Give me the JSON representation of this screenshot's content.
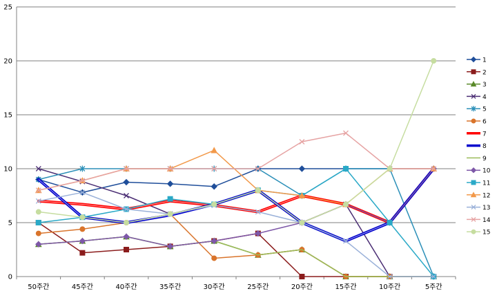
{
  "chart_data": {
    "type": "line",
    "categories": [
      "50주간",
      "45주간",
      "40주간",
      "35주간",
      "30주간",
      "25주간",
      "20주간",
      "15주간",
      "10주간",
      "5주간"
    ],
    "ylim": [
      0,
      25
    ],
    "yticks": [
      0,
      5,
      10,
      15,
      20,
      25
    ],
    "grid": true,
    "legend_position": "right",
    "series": [
      {
        "name": "1",
        "color": "#1F4E9A",
        "marker": "diamond",
        "width": 1.5,
        "values": [
          9,
          7.8,
          8.75,
          8.6,
          8.35,
          10,
          10,
          10,
          10,
          10
        ]
      },
      {
        "name": "2",
        "color": "#8B1C1C",
        "marker": "square",
        "width": 1.5,
        "values": [
          5,
          2.2,
          2.5,
          2.8,
          3.3,
          4,
          0,
          0,
          0,
          0
        ]
      },
      {
        "name": "3",
        "color": "#5A8A2A",
        "marker": "triangle",
        "width": 1.5,
        "values": [
          3,
          3.3,
          3.7,
          2.8,
          3.3,
          2,
          2.5,
          0,
          0,
          0
        ]
      },
      {
        "name": "4",
        "color": "#4B2E74",
        "marker": "x",
        "width": 1.5,
        "values": [
          10,
          8.8,
          7.5,
          5.8,
          6.7,
          8,
          5,
          6.7,
          0,
          0
        ]
      },
      {
        "name": "5",
        "color": "#2B8FB8",
        "marker": "star",
        "width": 1.5,
        "values": [
          9,
          10,
          10,
          10,
          10,
          10,
          7.5,
          10,
          10,
          0
        ]
      },
      {
        "name": "6",
        "color": "#D9742B",
        "marker": "circle",
        "width": 1.5,
        "values": [
          4,
          4.4,
          5,
          5.8,
          1.7,
          2,
          2.5,
          0,
          0,
          0
        ]
      },
      {
        "name": "7",
        "color": "#FF0000",
        "marker": "none",
        "width": 4,
        "values": [
          7,
          6.7,
          6.25,
          7,
          6.6,
          6,
          7.5,
          6.7,
          5,
          10
        ]
      },
      {
        "name": "8",
        "color": "#0000CC",
        "marker": "none",
        "width": 4,
        "values": [
          9,
          5.5,
          5,
          5.7,
          6.7,
          8,
          5,
          3.3,
          5,
          10
        ]
      },
      {
        "name": "9",
        "color": "#9BBB59",
        "marker": "none",
        "width": 1.5,
        "values": [
          3,
          3.3,
          3.7,
          2.8,
          3.3,
          2,
          2.5,
          0,
          0,
          0
        ]
      },
      {
        "name": "10",
        "color": "#7E58A8",
        "marker": "diamond",
        "width": 1.5,
        "values": [
          3,
          3.3,
          3.7,
          2.8,
          3.3,
          4,
          5,
          6.7,
          5,
          10
        ]
      },
      {
        "name": "11",
        "color": "#2AA9C7",
        "marker": "square",
        "width": 1.5,
        "values": [
          5,
          5.5,
          6.25,
          7.2,
          6.7,
          8,
          7.5,
          10,
          5,
          0
        ]
      },
      {
        "name": "12",
        "color": "#F2994A",
        "marker": "triangle",
        "width": 1.5,
        "values": [
          8,
          8.9,
          10,
          10,
          11.7,
          8,
          7.5,
          6.7,
          10,
          10
        ]
      },
      {
        "name": "13",
        "color": "#9AB1D9",
        "marker": "x",
        "width": 1.5,
        "values": [
          7,
          7.8,
          6.25,
          5.8,
          6.6,
          6,
          5,
          3.3,
          0,
          0
        ]
      },
      {
        "name": "14",
        "color": "#E6A3A3",
        "marker": "x",
        "width": 1.5,
        "values": [
          8,
          8.9,
          10,
          10,
          10,
          10,
          12.5,
          13.3,
          10,
          10
        ]
      },
      {
        "name": "15",
        "color": "#C6DDA0",
        "marker": "circle",
        "width": 1.5,
        "values": [
          6,
          5.5,
          5,
          5.8,
          6.7,
          8,
          5,
          6.7,
          10,
          20
        ]
      }
    ]
  }
}
